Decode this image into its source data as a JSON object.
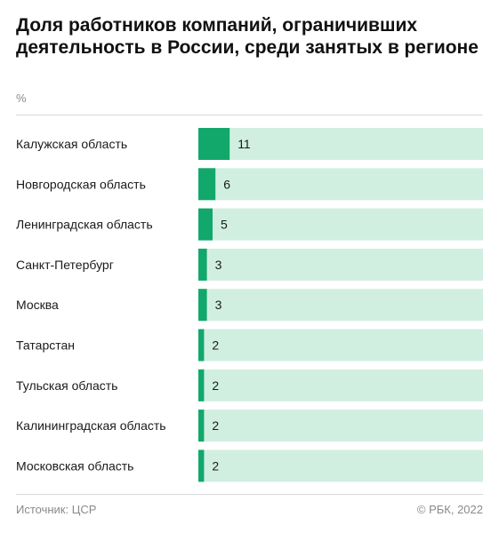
{
  "title": "Доля работников компаний, ограничивших деятельность в России, среди занятых в регионе",
  "unit": "%",
  "source": "Источник: ЦСР",
  "copyright": "© РБК, 2022",
  "colors": {
    "bar": "#12a86b",
    "track": "#d1efe1"
  },
  "chart_data": {
    "type": "bar",
    "orientation": "horizontal",
    "title": "Доля работников компаний, ограничивших деятельность в России, среди занятых в регионе",
    "unit": "%",
    "categories": [
      "Калужская область",
      "Новгородская область",
      "Ленинградская область",
      "Санкт-Петербург",
      "Москва",
      "Татарстан",
      "Тульская область",
      "Калининградская область",
      "Московская область"
    ],
    "values": [
      11,
      6,
      5,
      3,
      3,
      2,
      2,
      2,
      2
    ],
    "xlim": [
      0,
      100
    ],
    "grid": false
  }
}
